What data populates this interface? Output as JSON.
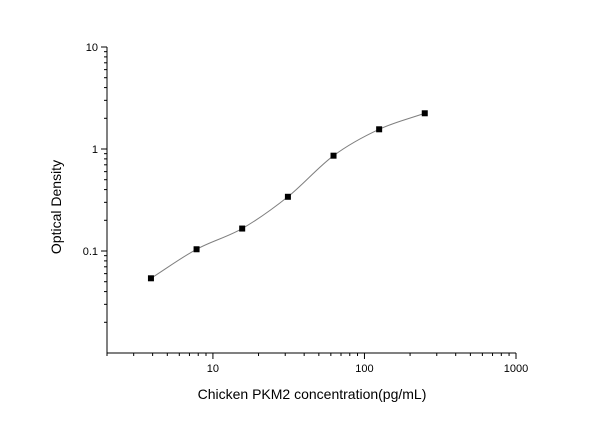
{
  "chart_data": {
    "type": "scatter",
    "title": "",
    "xlabel": "Chicken PKM2 concentration(pg/mL)",
    "ylabel": "Optical Density",
    "xscale": "log",
    "yscale": "log",
    "xlim": [
      2,
      1000
    ],
    "ylim": [
      0.01,
      10
    ],
    "xticks": [
      {
        "value": 10,
        "label": "10"
      },
      {
        "value": 100,
        "label": "100"
      },
      {
        "value": 1000,
        "label": "1000"
      }
    ],
    "yticks": [
      {
        "value": 0.1,
        "label": "0.1"
      },
      {
        "value": 1,
        "label": "1"
      },
      {
        "value": 10,
        "label": "10"
      }
    ],
    "grid": false,
    "legend": "none",
    "series": [
      {
        "x": [
          3.9,
          7.8,
          15.6,
          31.25,
          62.5,
          125,
          250
        ],
        "y": [
          0.054,
          0.104,
          0.166,
          0.34,
          0.86,
          1.56,
          2.24
        ],
        "marker": "square",
        "fit": "4-parameter logistic curve",
        "fit_range": [
          3.9,
          250
        ]
      }
    ],
    "colors": {
      "marker": "#000000",
      "curve": "#7f7f7f",
      "axis": "#000000"
    }
  }
}
